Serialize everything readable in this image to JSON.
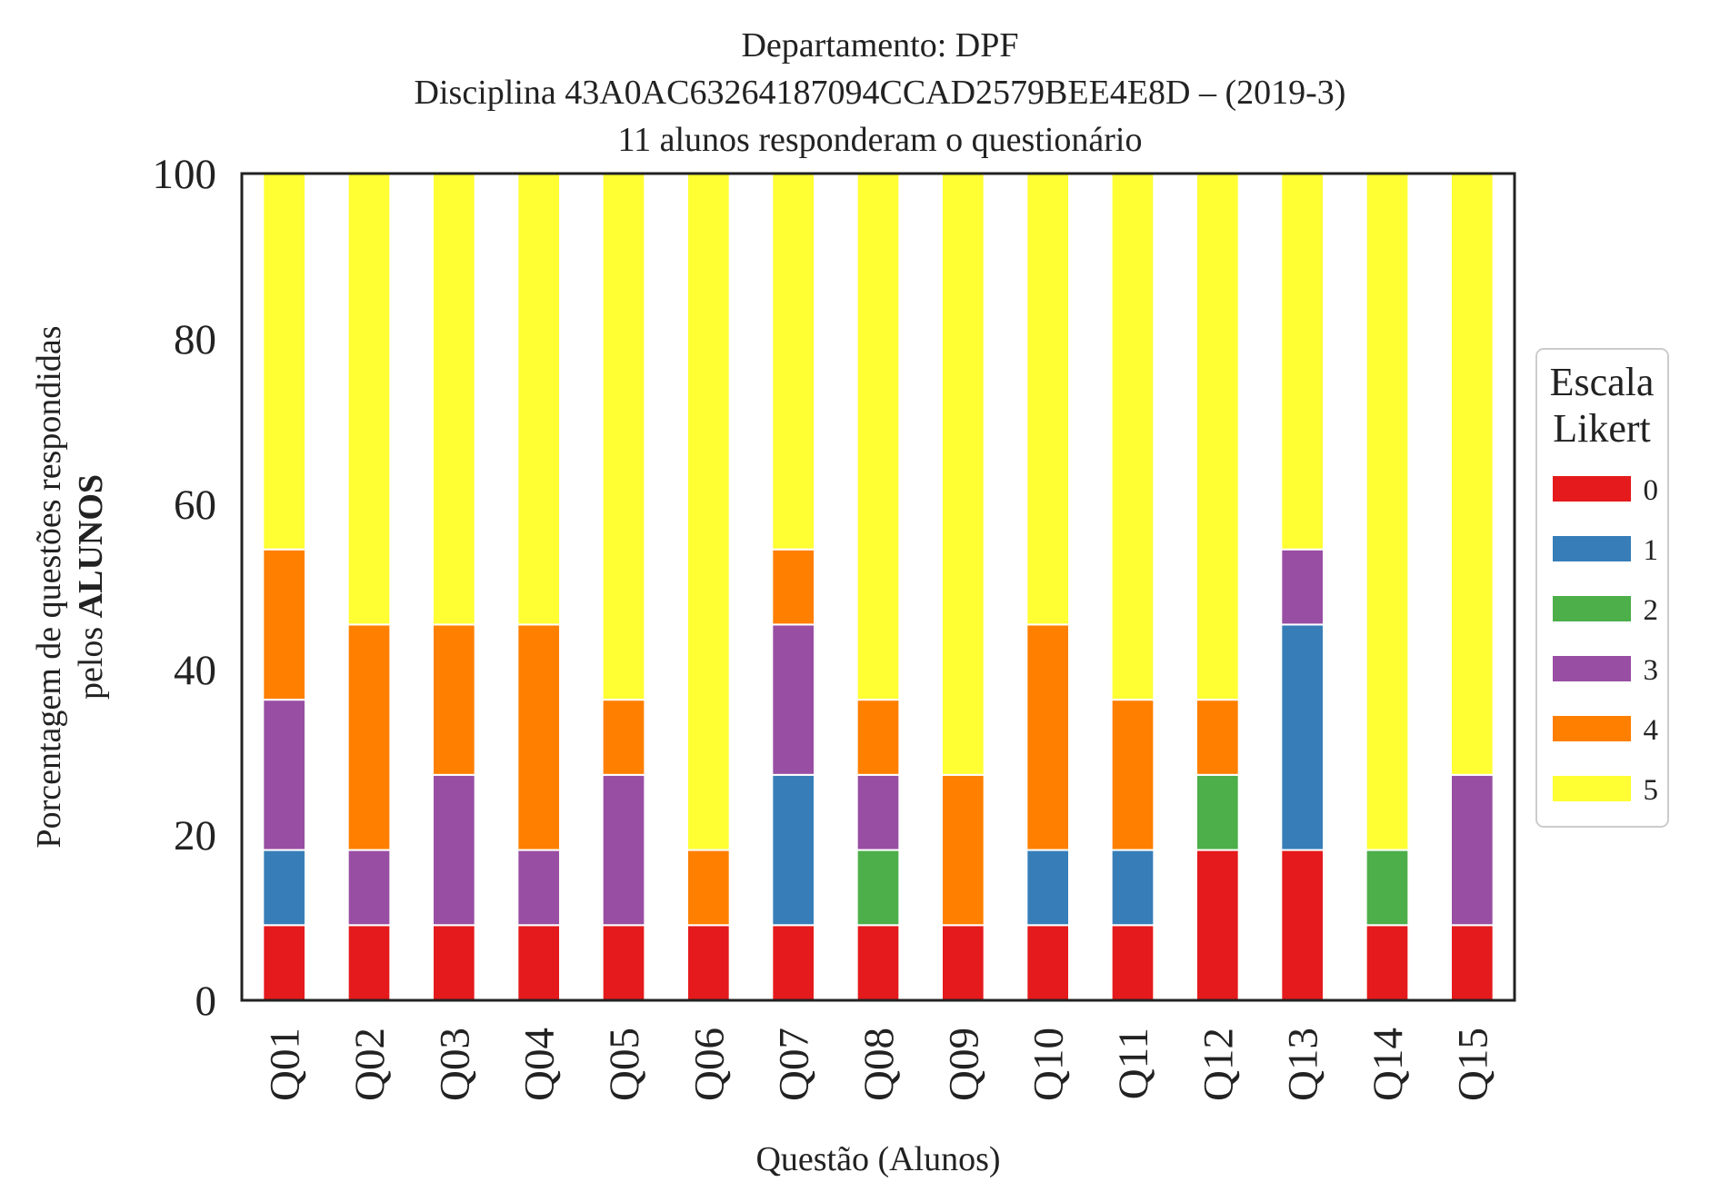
{
  "chart_data": {
    "type": "bar",
    "stacked": true,
    "title_lines": [
      "Departamento: DPF",
      "Disciplina 43A0AC63264187094CCAD2579BEE4E8D – (2019-3)",
      "11 alunos responderam o questionário"
    ],
    "xlabel": "Questão (Alunos)",
    "ylabel_line1": "Porcentagem de questões respondidas",
    "ylabel_line2_prefix": "pelos ",
    "ylabel_line2_bold": "ALUNOS",
    "ylim": [
      0,
      100
    ],
    "yticks": [
      "0",
      "20",
      "40",
      "60",
      "80",
      "100"
    ],
    "grid": false,
    "categories": [
      "Q01",
      "Q02",
      "Q03",
      "Q04",
      "Q05",
      "Q06",
      "Q07",
      "Q08",
      "Q09",
      "Q10",
      "Q11",
      "Q12",
      "Q13",
      "Q14",
      "Q15"
    ],
    "legend": {
      "title_lines": [
        "Escala",
        "Likert"
      ],
      "placement": "right-center"
    },
    "series": [
      {
        "name": "0",
        "color": "#e41a1c",
        "values": [
          9.09,
          9.09,
          9.09,
          9.09,
          9.09,
          9.09,
          9.09,
          9.09,
          9.09,
          9.09,
          9.09,
          18.18,
          18.18,
          9.09,
          9.09
        ]
      },
      {
        "name": "1",
        "color": "#377eb8",
        "values": [
          9.09,
          0,
          0,
          0,
          0,
          0,
          18.18,
          0,
          0,
          9.09,
          9.09,
          0,
          27.27,
          0,
          0
        ]
      },
      {
        "name": "2",
        "color": "#4daf4a",
        "values": [
          0,
          0,
          0,
          0,
          0,
          0,
          0,
          9.09,
          0,
          0,
          0,
          9.09,
          0,
          9.09,
          0
        ]
      },
      {
        "name": "3",
        "color": "#984ea3",
        "values": [
          18.18,
          9.09,
          18.18,
          9.09,
          18.18,
          0,
          18.18,
          9.09,
          0,
          0,
          0,
          0,
          9.09,
          0,
          18.18
        ]
      },
      {
        "name": "4",
        "color": "#ff7f00",
        "values": [
          18.18,
          27.27,
          18.18,
          27.27,
          9.09,
          9.09,
          9.09,
          9.09,
          18.18,
          27.27,
          18.18,
          9.09,
          0,
          0,
          0
        ]
      },
      {
        "name": "5",
        "color": "#ffff33",
        "values": [
          45.45,
          54.55,
          54.55,
          54.55,
          63.64,
          81.82,
          45.45,
          63.64,
          72.73,
          54.55,
          63.64,
          63.64,
          45.45,
          81.82,
          72.73
        ]
      }
    ]
  }
}
